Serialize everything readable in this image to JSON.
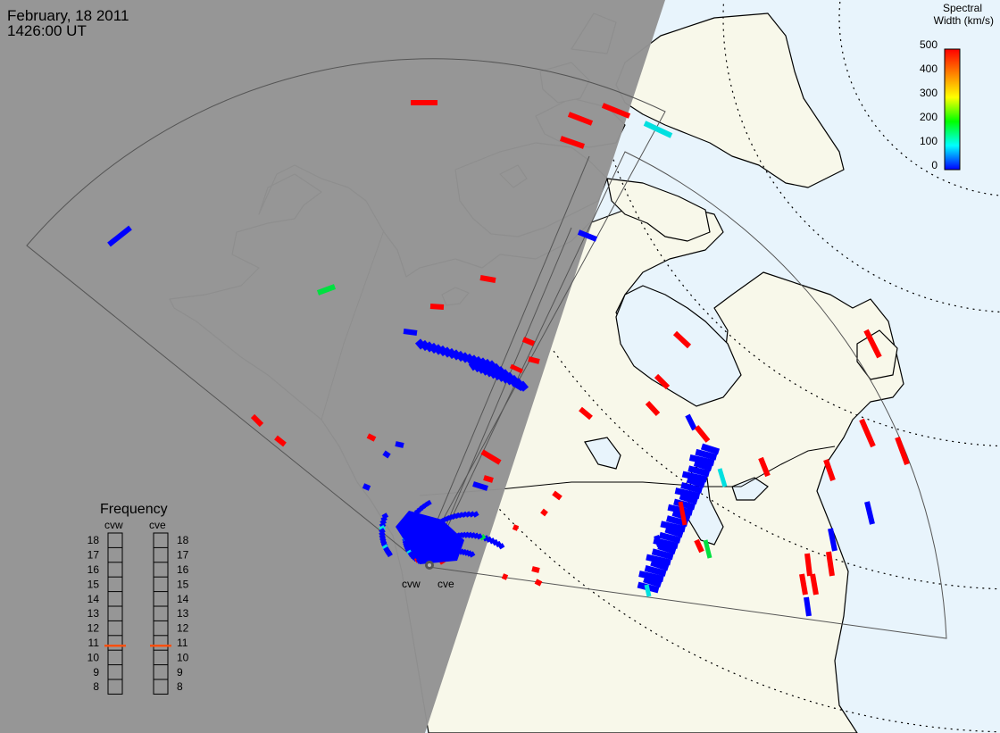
{
  "header": {
    "date": "February, 18 2011",
    "time": "1426:00 UT"
  },
  "colorbar": {
    "title_line1": "Spectral",
    "title_line2": "Width (km/s)",
    "ticks": [
      "500",
      "400",
      "300",
      "200",
      "100",
      "0"
    ],
    "min": 0,
    "max": 500,
    "colors": [
      "#0000ff",
      "#00ffff",
      "#00ff00",
      "#ffff00",
      "#ff8000",
      "#ff0000"
    ]
  },
  "frequency_panel": {
    "title": "Frequency",
    "radars": [
      {
        "name": "cvw",
        "value_mhz": 10.8
      },
      {
        "name": "cve",
        "value_mhz": 10.8
      }
    ],
    "scale": [
      "18",
      "17",
      "16",
      "15",
      "14",
      "13",
      "12",
      "11",
      "10",
      "9",
      "8"
    ]
  },
  "radars": [
    {
      "code": "cvw",
      "label": "cvw"
    },
    {
      "code": "cve",
      "label": "cve"
    }
  ],
  "colors": {
    "night_side": "#939393",
    "ocean_day": "#e8f4fc",
    "land_day": "#f8f8ea",
    "coastline": "#000000",
    "fov": "#555555",
    "freq_marker": "#ff5010"
  }
}
